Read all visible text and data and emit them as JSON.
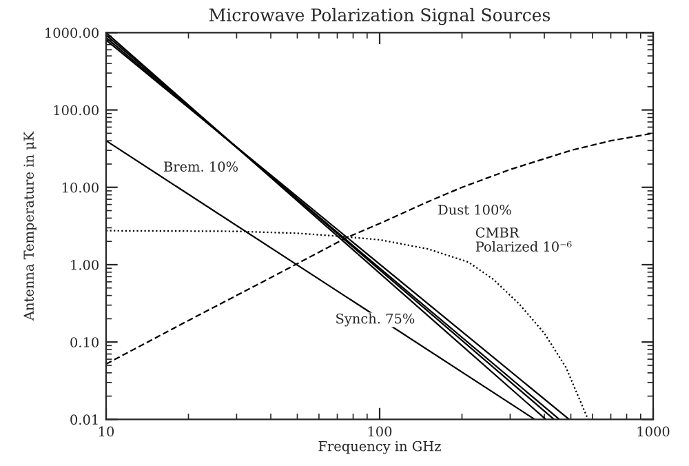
{
  "chart_data": {
    "type": "line",
    "title": "Microwave Polarization Signal Sources",
    "xlabel": "Frequency in GHz",
    "ylabel": "Antenna Temperature in μK",
    "log": "xy",
    "xlim": [
      10,
      1000
    ],
    "ylim": [
      0.01,
      1000
    ],
    "xticks": [
      10,
      100,
      1000
    ],
    "yticks": [
      {
        "value": 1000,
        "label": "1000.00"
      },
      {
        "value": 100,
        "label": "100.00"
      },
      {
        "value": 10,
        "label": "10.00"
      },
      {
        "value": 1,
        "label": "1.00"
      },
      {
        "value": 0.1,
        "label": "0.10"
      },
      {
        "value": 0.01,
        "label": "0.01"
      }
    ],
    "grid": false,
    "marker": "none",
    "series": [
      {
        "name": "Synch. 75%",
        "color": "#000000",
        "line_style": "solid",
        "x": [
          10,
          405
        ],
        "values": [
          1000,
          0.01
        ]
      },
      {
        "color": "#000000",
        "line_style": "solid",
        "x": [
          10,
          434
        ],
        "values": [
          930,
          0.01
        ]
      },
      {
        "color": "#000000",
        "line_style": "solid",
        "x": [
          10,
          454
        ],
        "values": [
          860,
          0.01
        ]
      },
      {
        "color": "#000000",
        "line_style": "solid",
        "x": [
          10,
          493
        ],
        "values": [
          800,
          0.01
        ]
      },
      {
        "name": "Brem. 10%",
        "color": "#000000",
        "line_style": "solid",
        "x": [
          10,
          369
        ],
        "values": [
          40,
          0.01
        ]
      },
      {
        "name": "Dust 100%",
        "color": "#000000",
        "line_style": "dashed",
        "x": [
          10,
          20,
          40,
          75,
          100,
          150,
          200,
          300,
          500,
          700,
          1000
        ],
        "values": [
          0.052,
          0.19,
          0.68,
          2.2,
          3.4,
          6.5,
          10,
          17,
          30,
          40,
          50
        ]
      },
      {
        "name": "CMBR\nPolarized 10⁻⁶",
        "color": "#000000",
        "line_style": "dotted",
        "x": [
          10,
          30,
          50,
          75,
          100,
          150,
          211,
          260,
          324,
          400,
          480,
          578
        ],
        "values": [
          2.75,
          2.7,
          2.55,
          2.3,
          2.1,
          1.6,
          1.08,
          0.65,
          0.31,
          0.13,
          0.047,
          0.01
        ]
      }
    ]
  }
}
